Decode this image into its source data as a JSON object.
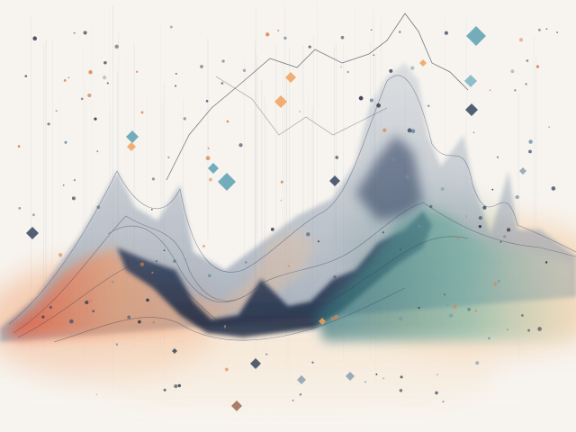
{
  "artwork": {
    "palette": {
      "background": "#f7f4ef",
      "red": "#e2553a",
      "orange": "#f2a06a",
      "navy": "#1f2e48",
      "slate": "#7c8ba3",
      "teal": "#5ea39c",
      "sky": "#6fa6b8",
      "sand": "#f3c89a"
    },
    "diamond_colors": [
      "#5c9fb0",
      "#f0a15a",
      "#35455f",
      "#7ab4c2",
      "#8aa0b0",
      "#9a6a52"
    ]
  }
}
